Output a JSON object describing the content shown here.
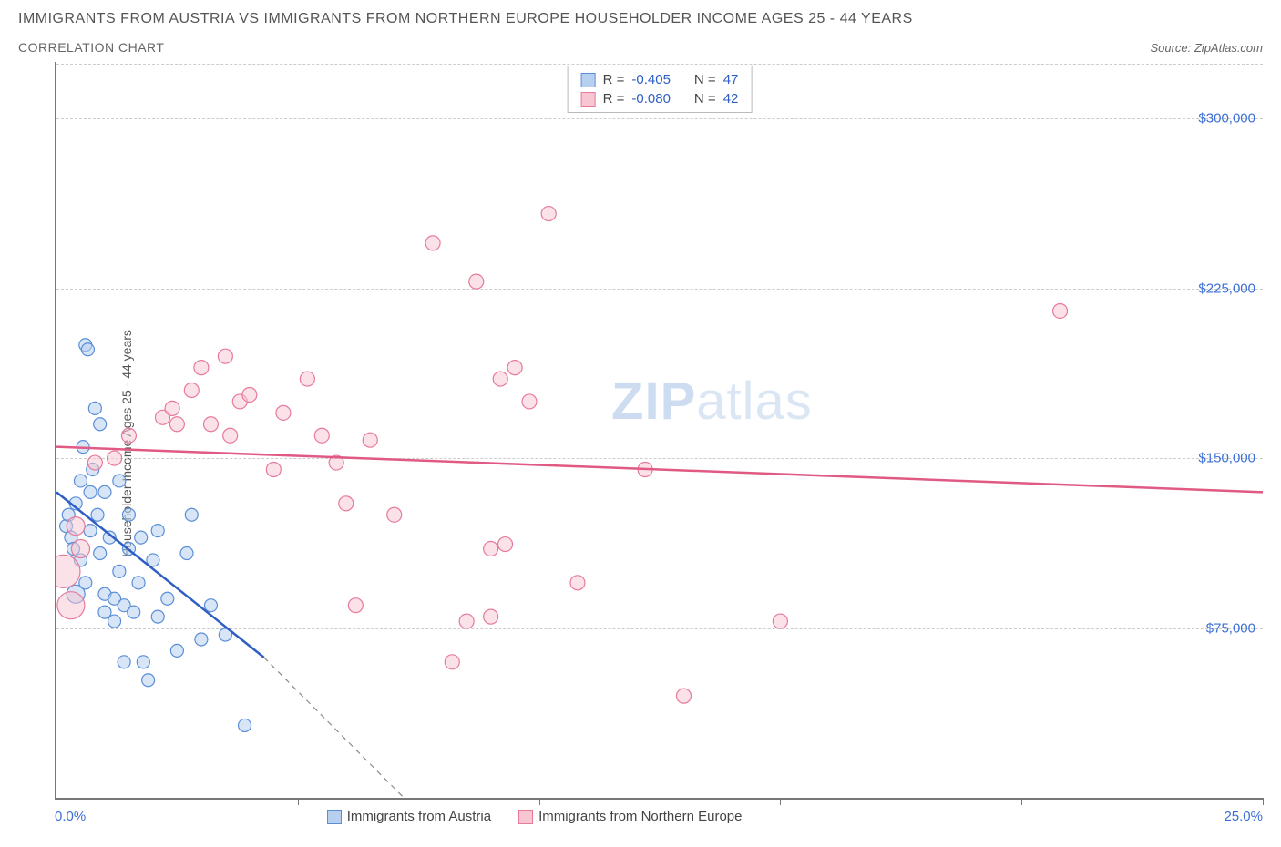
{
  "title": "IMMIGRANTS FROM AUSTRIA VS IMMIGRANTS FROM NORTHERN EUROPE HOUSEHOLDER INCOME AGES 25 - 44 YEARS",
  "subtitle": "CORRELATION CHART",
  "source_label": "Source: ",
  "source_value": "ZipAtlas.com",
  "ylabel": "Householder Income Ages 25 - 44 years",
  "watermark_a": "ZIP",
  "watermark_b": "atlas",
  "chart": {
    "type": "scatter",
    "background_color": "#ffffff",
    "grid_color": "#cccccc",
    "xlim": [
      0,
      25
    ],
    "ylim": [
      0,
      325000
    ],
    "yticks": [
      {
        "v": 75000,
        "label": "$75,000"
      },
      {
        "v": 150000,
        "label": "$150,000"
      },
      {
        "v": 225000,
        "label": "$225,000"
      },
      {
        "v": 300000,
        "label": "$300,000"
      }
    ],
    "xticks": [
      5,
      10,
      15,
      20,
      25
    ],
    "x_left_label": "0.0%",
    "x_right_label": "25.0%",
    "tick_label_color": "#3b6fd6",
    "series": [
      {
        "id": "austria",
        "legend_label": "Immigrants from Austria",
        "fill": "#b8d0f0",
        "stroke": "#5a8fd8",
        "fill_opacity": 0.55,
        "line_color": "#2f5fc4",
        "r_label": "R = ",
        "r_value": "-0.405",
        "n_label": "N = ",
        "n_value": "47",
        "trend": {
          "x1": 0,
          "y1": 135000,
          "x2": 4.3,
          "y2": 62000,
          "dash_to_x": 7.2,
          "dash_to_y": 0
        },
        "points": [
          {
            "x": 0.2,
            "y": 120000,
            "r": 7
          },
          {
            "x": 0.25,
            "y": 125000,
            "r": 7
          },
          {
            "x": 0.3,
            "y": 115000,
            "r": 7
          },
          {
            "x": 0.35,
            "y": 110000,
            "r": 7
          },
          {
            "x": 0.4,
            "y": 130000,
            "r": 7
          },
          {
            "x": 0.4,
            "y": 90000,
            "r": 10
          },
          {
            "x": 0.5,
            "y": 140000,
            "r": 7
          },
          {
            "x": 0.5,
            "y": 105000,
            "r": 7
          },
          {
            "x": 0.55,
            "y": 155000,
            "r": 7
          },
          {
            "x": 0.6,
            "y": 95000,
            "r": 7
          },
          {
            "x": 0.6,
            "y": 200000,
            "r": 7
          },
          {
            "x": 0.65,
            "y": 198000,
            "r": 7
          },
          {
            "x": 0.7,
            "y": 135000,
            "r": 7
          },
          {
            "x": 0.7,
            "y": 118000,
            "r": 7
          },
          {
            "x": 0.75,
            "y": 145000,
            "r": 7
          },
          {
            "x": 0.8,
            "y": 172000,
            "r": 7
          },
          {
            "x": 0.85,
            "y": 125000,
            "r": 7
          },
          {
            "x": 0.9,
            "y": 165000,
            "r": 7
          },
          {
            "x": 0.9,
            "y": 108000,
            "r": 7
          },
          {
            "x": 1.0,
            "y": 82000,
            "r": 7
          },
          {
            "x": 1.0,
            "y": 90000,
            "r": 7
          },
          {
            "x": 1.0,
            "y": 135000,
            "r": 7
          },
          {
            "x": 1.1,
            "y": 115000,
            "r": 7
          },
          {
            "x": 1.2,
            "y": 88000,
            "r": 7
          },
          {
            "x": 1.2,
            "y": 78000,
            "r": 7
          },
          {
            "x": 1.3,
            "y": 140000,
            "r": 7
          },
          {
            "x": 1.3,
            "y": 100000,
            "r": 7
          },
          {
            "x": 1.4,
            "y": 85000,
            "r": 7
          },
          {
            "x": 1.4,
            "y": 60000,
            "r": 7
          },
          {
            "x": 1.5,
            "y": 110000,
            "r": 7
          },
          {
            "x": 1.5,
            "y": 125000,
            "r": 7
          },
          {
            "x": 1.6,
            "y": 82000,
            "r": 7
          },
          {
            "x": 1.7,
            "y": 95000,
            "r": 7
          },
          {
            "x": 1.75,
            "y": 115000,
            "r": 7
          },
          {
            "x": 1.8,
            "y": 60000,
            "r": 7
          },
          {
            "x": 1.9,
            "y": 52000,
            "r": 7
          },
          {
            "x": 2.0,
            "y": 105000,
            "r": 7
          },
          {
            "x": 2.1,
            "y": 80000,
            "r": 7
          },
          {
            "x": 2.1,
            "y": 118000,
            "r": 7
          },
          {
            "x": 2.3,
            "y": 88000,
            "r": 7
          },
          {
            "x": 2.5,
            "y": 65000,
            "r": 7
          },
          {
            "x": 2.7,
            "y": 108000,
            "r": 7
          },
          {
            "x": 3.0,
            "y": 70000,
            "r": 7
          },
          {
            "x": 3.2,
            "y": 85000,
            "r": 7
          },
          {
            "x": 3.5,
            "y": 72000,
            "r": 7
          },
          {
            "x": 3.9,
            "y": 32000,
            "r": 7
          },
          {
            "x": 2.8,
            "y": 125000,
            "r": 7
          }
        ]
      },
      {
        "id": "neurope",
        "legend_label": "Immigrants from Northern Europe",
        "fill": "#f7c6d2",
        "stroke": "#e77a9a",
        "fill_opacity": 0.5,
        "line_color": "#e05a84",
        "r_label": "R = ",
        "r_value": "-0.080",
        "n_label": "N = ",
        "n_value": "42",
        "trend": {
          "x1": 0,
          "y1": 155000,
          "x2": 25,
          "y2": 135000
        },
        "points": [
          {
            "x": 0.15,
            "y": 100000,
            "r": 18
          },
          {
            "x": 0.3,
            "y": 85000,
            "r": 15
          },
          {
            "x": 0.4,
            "y": 120000,
            "r": 10
          },
          {
            "x": 0.5,
            "y": 110000,
            "r": 10
          },
          {
            "x": 0.8,
            "y": 148000,
            "r": 8
          },
          {
            "x": 1.2,
            "y": 150000,
            "r": 8
          },
          {
            "x": 1.5,
            "y": 160000,
            "r": 8
          },
          {
            "x": 2.2,
            "y": 168000,
            "r": 8
          },
          {
            "x": 2.4,
            "y": 172000,
            "r": 8
          },
          {
            "x": 2.5,
            "y": 165000,
            "r": 8
          },
          {
            "x": 2.8,
            "y": 180000,
            "r": 8
          },
          {
            "x": 3.0,
            "y": 190000,
            "r": 8
          },
          {
            "x": 3.2,
            "y": 165000,
            "r": 8
          },
          {
            "x": 3.5,
            "y": 195000,
            "r": 8
          },
          {
            "x": 3.6,
            "y": 160000,
            "r": 8
          },
          {
            "x": 3.8,
            "y": 175000,
            "r": 8
          },
          {
            "x": 4.0,
            "y": 178000,
            "r": 8
          },
          {
            "x": 4.5,
            "y": 145000,
            "r": 8
          },
          {
            "x": 4.7,
            "y": 170000,
            "r": 8
          },
          {
            "x": 5.2,
            "y": 185000,
            "r": 8
          },
          {
            "x": 5.5,
            "y": 160000,
            "r": 8
          },
          {
            "x": 5.8,
            "y": 148000,
            "r": 8
          },
          {
            "x": 6.0,
            "y": 130000,
            "r": 8
          },
          {
            "x": 6.2,
            "y": 85000,
            "r": 8
          },
          {
            "x": 6.5,
            "y": 158000,
            "r": 8
          },
          {
            "x": 7.0,
            "y": 125000,
            "r": 8
          },
          {
            "x": 7.8,
            "y": 245000,
            "r": 8
          },
          {
            "x": 8.2,
            "y": 60000,
            "r": 8
          },
          {
            "x": 8.5,
            "y": 78000,
            "r": 8
          },
          {
            "x": 8.7,
            "y": 228000,
            "r": 8
          },
          {
            "x": 9.0,
            "y": 110000,
            "r": 8
          },
          {
            "x": 9.2,
            "y": 185000,
            "r": 8
          },
          {
            "x": 9.3,
            "y": 112000,
            "r": 8
          },
          {
            "x": 9.5,
            "y": 190000,
            "r": 8
          },
          {
            "x": 9.8,
            "y": 175000,
            "r": 8
          },
          {
            "x": 10.2,
            "y": 258000,
            "r": 8
          },
          {
            "x": 10.8,
            "y": 95000,
            "r": 8
          },
          {
            "x": 12.2,
            "y": 145000,
            "r": 8
          },
          {
            "x": 13.0,
            "y": 45000,
            "r": 8
          },
          {
            "x": 15.0,
            "y": 78000,
            "r": 8
          },
          {
            "x": 20.8,
            "y": 215000,
            "r": 8
          },
          {
            "x": 9.0,
            "y": 80000,
            "r": 8
          }
        ]
      }
    ]
  }
}
